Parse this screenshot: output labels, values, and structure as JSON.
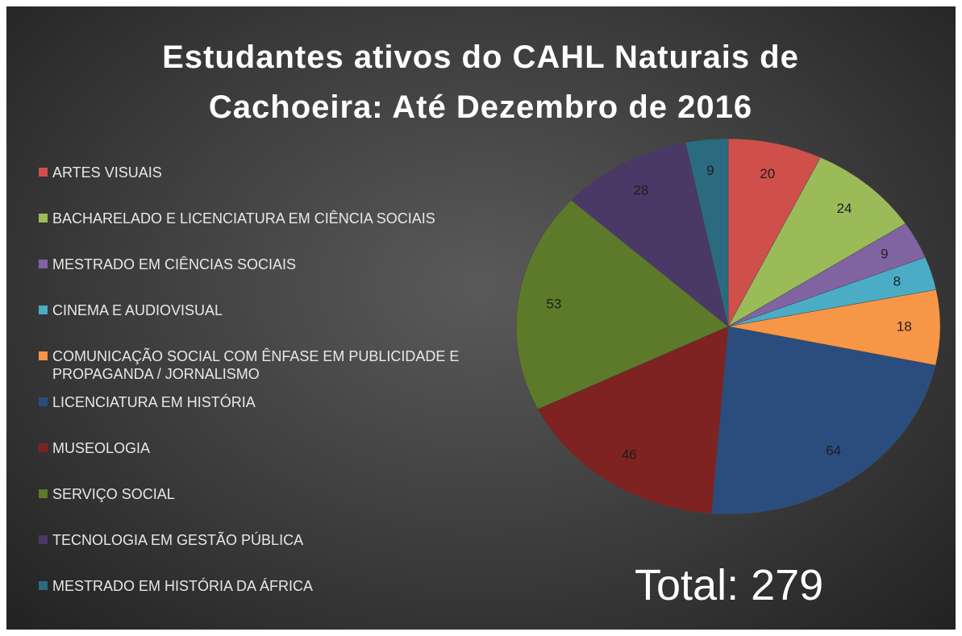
{
  "chart_data": {
    "type": "pie",
    "title": "Estudantes ativos do CAHL Naturais de Cachoeira: Até Dezembro de 2016",
    "categories": [
      "ARTES VISUAIS",
      "BACHARELADO E LICENCIATURA EM CIÊNCIA SOCIAIS",
      "MESTRADO EM CIÊNCIAS SOCIAIS",
      "CINEMA E AUDIOVISUAL",
      "COMUNICAÇÃO SOCIAL COM ÊNFASE EM PUBLICIDADE E PROPAGANDA / JORNALISMO",
      "LICENCIATURA EM HISTÓRIA",
      "MUSEOLOGIA",
      "SERVIÇO SOCIAL",
      "TECNOLOGIA EM GESTÃO PÚBLICA",
      "MESTRADO EM HISTÓRIA DA ÁFRICA"
    ],
    "values": [
      20,
      24,
      9,
      8,
      18,
      64,
      46,
      53,
      28,
      9
    ],
    "colors": [
      "#cf4f4b",
      "#9bbb59",
      "#8064a2",
      "#4bacc6",
      "#f79646",
      "#2b4d7e",
      "#7e2222",
      "#5d7a2a",
      "#4a3866",
      "#2a6b80"
    ],
    "annotation": "Total: 279",
    "legend": "left"
  }
}
